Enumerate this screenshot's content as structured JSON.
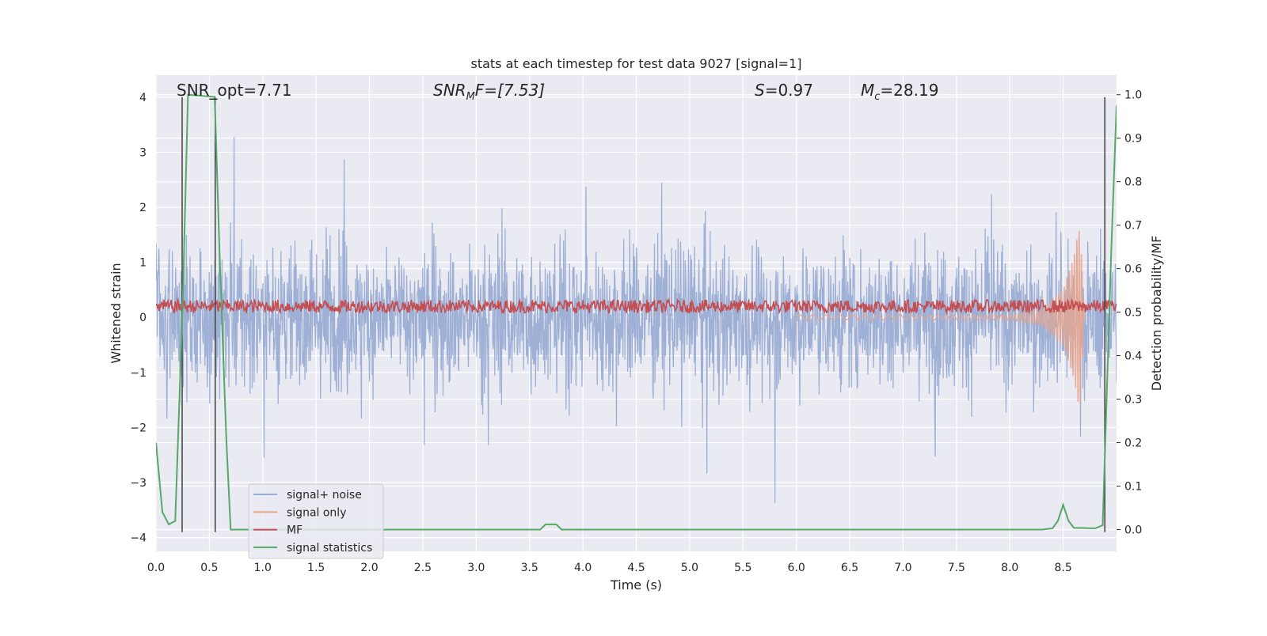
{
  "chart_data": {
    "type": "line",
    "title": "stats at each timestep for test data 9027 [signal=1]",
    "xlabel": "Time (s)",
    "ylabel": "Whitened strain",
    "y2label": "Detection probability/MF",
    "xlim": [
      0.0,
      9.0
    ],
    "ylim": [
      -4.25,
      4.4
    ],
    "y2lim": [
      -0.05,
      1.045
    ],
    "xticks": [
      "0.0",
      "0.5",
      "1.0",
      "1.5",
      "2.0",
      "2.5",
      "3.0",
      "3.5",
      "4.0",
      "4.5",
      "5.0",
      "5.5",
      "6.0",
      "6.5",
      "7.0",
      "7.5",
      "8.0",
      "8.5"
    ],
    "yticks": [
      "4",
      "3",
      "2",
      "1",
      "0",
      "−1",
      "−2",
      "−3",
      "−4"
    ],
    "y2ticks": [
      "1.0",
      "0.9",
      "0.8",
      "0.7",
      "0.6",
      "0.5",
      "0.4",
      "0.3",
      "0.2",
      "0.1",
      "0.0"
    ],
    "grid": true,
    "legend_position": "lower-left",
    "annotations": {
      "snr_opt": "SNR_opt=7.71",
      "snr_mf_prefix": "SNR",
      "snr_mf_sub": "M",
      "snr_mf_suffix": "F=[7.53]",
      "s_prefix": "S",
      "s_suffix": "=0.97",
      "mc_prefix": "M",
      "mc_sub": "c",
      "mc_suffix": "=28.19"
    },
    "series": [
      {
        "name": "signal+ noise",
        "color": "#9aadd3",
        "axis": "left",
        "description_values": {
          "envelope_low": -2.5,
          "envelope_high": 2.5,
          "peak_max": 4.0,
          "peak_min": -3.9
        }
      },
      {
        "name": "signal only",
        "color": "#e7a58e",
        "axis": "left",
        "x": [
          0.0,
          8.0,
          8.3,
          8.5,
          8.6,
          8.64,
          8.66,
          8.7
        ],
        "amplitude": [
          0.02,
          0.05,
          0.15,
          0.5,
          1.1,
          1.55,
          1.6,
          0.0
        ]
      },
      {
        "name": "MF",
        "color": "#c44e52",
        "axis": "left",
        "baseline": 0.2,
        "jitter": 0.12
      },
      {
        "name": "signal statistics",
        "color": "#55a868",
        "axis": "right",
        "x": [
          0.0,
          0.06,
          0.12,
          0.18,
          0.25,
          0.3,
          0.55,
          0.6,
          0.66,
          0.7,
          3.6,
          3.65,
          3.75,
          3.8,
          8.3,
          8.4,
          8.45,
          8.5,
          8.55,
          8.6,
          8.8,
          8.87,
          8.95,
          9.0
        ],
        "y": [
          0.2,
          0.04,
          0.012,
          0.02,
          0.52,
          1.0,
          0.995,
          0.6,
          0.2,
          0.0,
          0.0,
          0.012,
          0.012,
          0.0,
          0.0,
          0.003,
          0.02,
          0.057,
          0.02,
          0.004,
          0.003,
          0.01,
          0.64,
          0.975
        ]
      }
    ],
    "vertical_markers": {
      "color": "#404040",
      "x": [
        0.245,
        0.555,
        8.89
      ]
    }
  }
}
